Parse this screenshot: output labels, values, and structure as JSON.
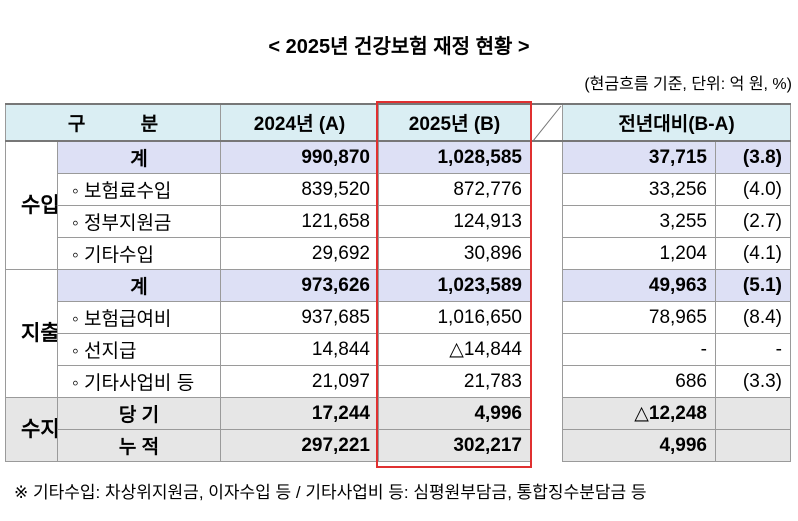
{
  "title": "< 2025년 건강보험 재정 현황 >",
  "unit_note": "(현금흐름 기준, 단위: 억 원, %)",
  "table": {
    "header": [
      "구 분",
      "2024년 (A)",
      "2025년 (B)",
      "전년대비(B-A)"
    ],
    "groups": [
      {
        "label": "수입",
        "fill": "#ffffff",
        "rows": [
          {
            "label": "계",
            "bold": true,
            "center": true,
            "fill": "#dde0f5",
            "a": "990,870",
            "b": "1,028,585",
            "diff": "37,715",
            "pct": "(3.8)"
          },
          {
            "label": "◦ 보험료수입",
            "a": "839,520",
            "b": "872,776",
            "diff": "33,256",
            "pct": "(4.0)"
          },
          {
            "label": "◦ 정부지원금",
            "a": "121,658",
            "b": "124,913",
            "diff": "3,255",
            "pct": "(2.7)"
          },
          {
            "label": "◦ 기타수입",
            "a": "29,692",
            "b": "30,896",
            "diff": "1,204",
            "pct": "(4.1)"
          }
        ]
      },
      {
        "label": "지출",
        "fill": "#ffffff",
        "rows": [
          {
            "label": "계",
            "bold": true,
            "center": true,
            "fill": "#dde0f5",
            "a": "973,626",
            "b": "1,023,589",
            "diff": "49,963",
            "pct": "(5.1)"
          },
          {
            "label": "◦ 보험급여비",
            "a": "937,685",
            "b": "1,016,650",
            "diff": "78,965",
            "pct": "(8.4)"
          },
          {
            "label": "◦ 선지급",
            "a": "14,844",
            "b": "△14,844",
            "diff": "-",
            "pct": "-"
          },
          {
            "label": "◦ 기타사업비 등",
            "a": "21,097",
            "b": "21,783",
            "diff": "686",
            "pct": "(3.3)"
          }
        ]
      },
      {
        "label": "수지",
        "fill": "#e6e6e6",
        "rows": [
          {
            "label": "당 기",
            "bold": true,
            "center": true,
            "fill": "#e6e6e6",
            "a": "17,244",
            "b": "4,996",
            "diff": "△12,248"
          },
          {
            "label": "누 적",
            "bold": true,
            "center": true,
            "fill": "#e6e6e6",
            "a": "297,221",
            "b": "302,217",
            "diff": "4,996"
          }
        ]
      }
    ]
  },
  "footnote": "※ 기타수입: 차상위지원금, 이자수입 등 / 기타사업비 등: 심평원부담금, 통합징수분담금 등"
}
